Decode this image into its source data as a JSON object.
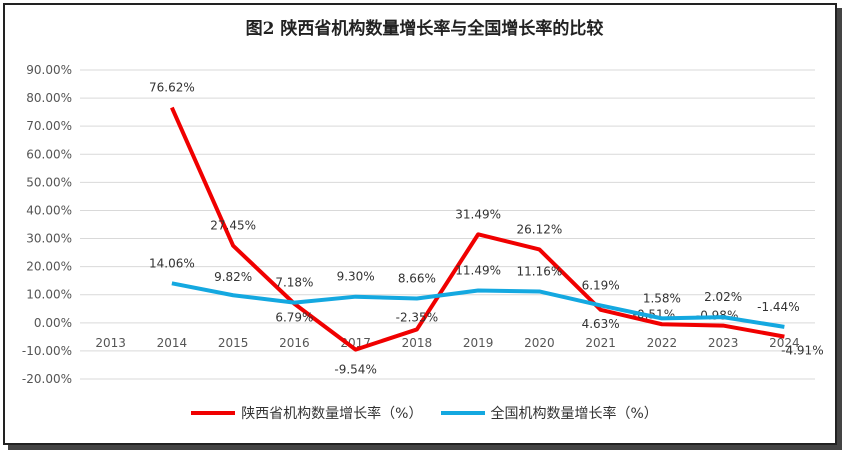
{
  "chart_data": {
    "type": "line",
    "title": "图2 陕西省机构数量增长率与全国增长率的比较",
    "categories": [
      "2013",
      "2014",
      "2015",
      "2016",
      "2017",
      "2018",
      "2019",
      "2020",
      "2021",
      "2022",
      "2023",
      "2024"
    ],
    "ylim": [
      -20,
      90
    ],
    "yticks": [
      "-20.00%",
      "-10.00%",
      "0.00%",
      "10.00%",
      "20.00%",
      "30.00%",
      "40.00%",
      "50.00%",
      "60.00%",
      "70.00%",
      "80.00%",
      "90.00%"
    ],
    "grid": true,
    "legend": "bottom",
    "series": [
      {
        "name": "陕西省机构数量增长率（%）",
        "color": "#f00000",
        "values": [
          null,
          76.62,
          27.45,
          6.79,
          -9.54,
          -2.35,
          31.49,
          26.12,
          4.63,
          -0.51,
          -0.98,
          -4.91
        ],
        "labels": [
          "",
          "76.62%",
          "27.45%",
          "6.79%",
          "-9.54%",
          "-2.35%",
          "31.49%",
          "26.12%",
          "4.63%",
          "-0.51%",
          "-0.98%",
          "-4.91%"
        ]
      },
      {
        "name": "全国机构数量增长率（%）",
        "color": "#14a8e0",
        "values": [
          null,
          14.06,
          9.82,
          7.18,
          9.3,
          8.66,
          11.49,
          11.16,
          6.19,
          1.58,
          2.02,
          -1.44
        ],
        "labels": [
          "",
          "14.06%",
          "9.82%",
          "7.18%",
          "9.30%",
          "8.66%",
          "11.49%",
          "11.16%",
          "6.19%",
          "1.58%",
          "2.02%",
          "-1.44%"
        ]
      }
    ]
  }
}
